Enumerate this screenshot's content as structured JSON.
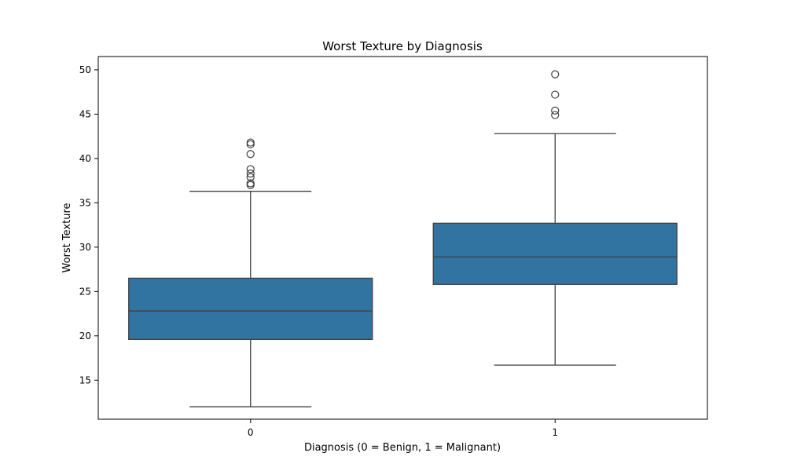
{
  "chart_data": {
    "type": "box",
    "title": "Worst Texture by Diagnosis",
    "xlabel": "Diagnosis (0 = Benign, 1 = Malignant)",
    "ylabel": "Worst Texture",
    "categories": [
      "0",
      "1"
    ],
    "ylim": [
      10.6,
      51.5
    ],
    "yticks": [
      15,
      20,
      25,
      30,
      35,
      40,
      45,
      50
    ],
    "grid": false,
    "box_color": "#3274a1",
    "boxes": [
      {
        "category": "0",
        "whisker_low": 12.0,
        "q1": 19.6,
        "median": 22.8,
        "q3": 26.5,
        "whisker_high": 36.3,
        "outliers": [
          37.0,
          37.2,
          37.9,
          38.3,
          38.8,
          40.5,
          41.6,
          41.8
        ]
      },
      {
        "category": "1",
        "whisker_low": 16.7,
        "q1": 25.8,
        "median": 28.9,
        "q3": 32.7,
        "whisker_high": 42.8,
        "outliers": [
          44.9,
          45.4,
          47.2,
          49.5
        ]
      }
    ]
  }
}
